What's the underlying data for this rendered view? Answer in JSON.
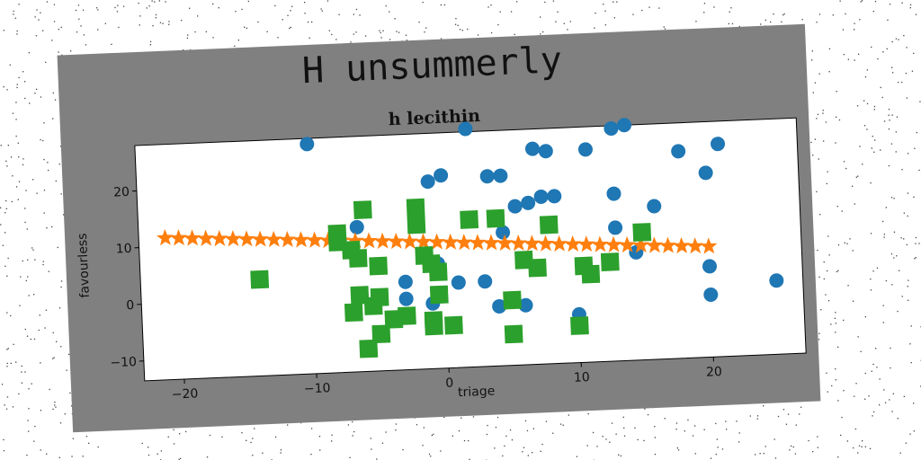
{
  "figure": {
    "title": "H unsummerly"
  },
  "chart_data": {
    "type": "scatter",
    "title": "h lecithin",
    "xlabel": "triage",
    "ylabel": "favourless",
    "xlim": [
      -23,
      27
    ],
    "ylim": [
      -13.5,
      28
    ],
    "xticks": [
      -20,
      -10,
      0,
      10,
      20
    ],
    "yticks": [
      -10,
      0,
      10,
      20
    ],
    "grid": false,
    "series": [
      {
        "marker": "circle",
        "color": "#1f77b4",
        "points": [
          [
            -10,
            27
          ],
          [
            2,
            28.5
          ],
          [
            7,
            24.5
          ],
          [
            8,
            24
          ],
          [
            11,
            24
          ],
          [
            13,
            27.5
          ],
          [
            14,
            28
          ],
          [
            18,
            23
          ],
          [
            21,
            24
          ],
          [
            20,
            19
          ],
          [
            -1,
            19.5
          ],
          [
            0,
            20.5
          ],
          [
            3.5,
            20
          ],
          [
            4.5,
            20
          ],
          [
            5.5,
            14.5
          ],
          [
            6.5,
            15
          ],
          [
            7.5,
            16
          ],
          [
            8.5,
            16
          ],
          [
            13,
            16
          ],
          [
            16,
            13.5
          ],
          [
            -6.5,
            12
          ],
          [
            4.5,
            10
          ],
          [
            13,
            10
          ],
          [
            -3,
            2
          ],
          [
            -0.5,
            5
          ],
          [
            1,
            1.5
          ],
          [
            3,
            1.5
          ],
          [
            -3,
            -1
          ],
          [
            -1,
            -2
          ],
          [
            4,
            -3
          ],
          [
            6,
            -3
          ],
          [
            10,
            -5
          ],
          [
            14.5,
            5.5
          ],
          [
            20,
            2.5
          ],
          [
            20,
            -2.5
          ],
          [
            25,
            -0.5
          ]
        ]
      },
      {
        "marker": "star",
        "color": "#ff7f0e",
        "line": {
          "from": [
            -21,
            11.5
          ],
          "to": [
            20,
            6
          ]
        }
      },
      {
        "marker": "square",
        "color": "#2ca02c",
        "points": [
          [
            -14,
            3.5
          ],
          [
            -8,
            11
          ],
          [
            -8,
            9.5
          ],
          [
            -6,
            15
          ],
          [
            -2,
            15
          ],
          [
            -2,
            12
          ],
          [
            2,
            12.5
          ],
          [
            4,
            12.5
          ],
          [
            8,
            11
          ],
          [
            15,
            9
          ],
          [
            -7,
            8
          ],
          [
            -6.5,
            6.5
          ],
          [
            -5,
            5
          ],
          [
            -1.5,
            6.5
          ],
          [
            -1,
            5
          ],
          [
            -0.5,
            3.5
          ],
          [
            6,
            5
          ],
          [
            7,
            3.5
          ],
          [
            10.5,
            3.5
          ],
          [
            12.5,
            4
          ],
          [
            11,
            2
          ],
          [
            -6.5,
            0
          ],
          [
            -5,
            -0.5
          ],
          [
            -0.5,
            -0.5
          ],
          [
            -5.5,
            -2
          ],
          [
            -7,
            -3
          ],
          [
            -3,
            -4
          ],
          [
            -4,
            -4.5
          ],
          [
            -1,
            -5
          ],
          [
            -1,
            -6
          ],
          [
            -5,
            -7
          ],
          [
            0.5,
            -6
          ],
          [
            5,
            -2
          ],
          [
            10,
            -7
          ],
          [
            5,
            -8
          ],
          [
            -6,
            -9.5
          ]
        ]
      }
    ]
  }
}
